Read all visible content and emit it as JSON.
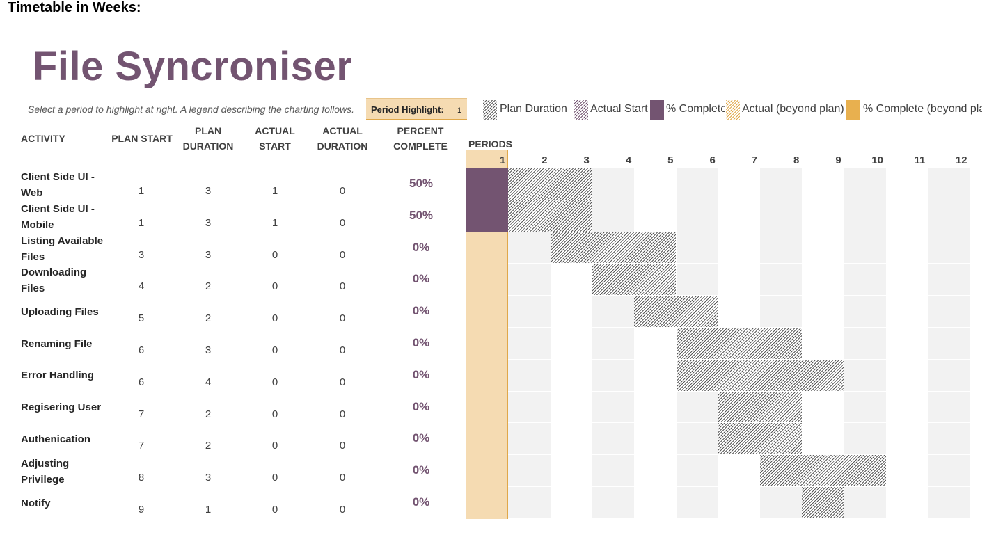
{
  "top_heading": "Timetable in Weeks:",
  "project_title": "File Syncroniser",
  "subtitle": "Select a period to highlight at right.  A legend describing the charting follows.",
  "period_highlight": {
    "label": "Period Highlight:",
    "value": "1"
  },
  "legend": [
    {
      "label": "Plan Duration",
      "swatch": "plan-hatch"
    },
    {
      "label": "Actual Start",
      "swatch": "actual-hatch"
    },
    {
      "label": "% Complete",
      "swatch": "complete-solid"
    },
    {
      "label": "Actual (beyond plan)",
      "swatch": "beyond-hatch"
    },
    {
      "label": "% Complete (beyond plan)",
      "swatch": "beyond-solid"
    }
  ],
  "columns": {
    "activity": "ACTIVITY",
    "plan_start": "PLAN START",
    "plan_duration": "PLAN\nDURATION",
    "actual_start": "ACTUAL\nSTART",
    "actual_duration": "ACTUAL\nDURATION",
    "percent_complete": "PERCENT\nCOMPLETE",
    "periods": "PERIODS"
  },
  "periods": [
    "1",
    "2",
    "3",
    "4",
    "5",
    "6",
    "7",
    "8",
    "9",
    "10",
    "11",
    "12"
  ],
  "activities": [
    {
      "name": "Client Side UI - Web",
      "plan_start": 1,
      "plan_duration": 3,
      "actual_start": 1,
      "actual_duration": 0,
      "percent": "50%",
      "complete": 0.5
    },
    {
      "name": "Client Side UI - Mobile",
      "plan_start": 1,
      "plan_duration": 3,
      "actual_start": 1,
      "actual_duration": 0,
      "percent": "50%",
      "complete": 0.5
    },
    {
      "name": "Listing Available Files",
      "plan_start": 3,
      "plan_duration": 3,
      "actual_start": 0,
      "actual_duration": 0,
      "percent": "0%",
      "complete": 0
    },
    {
      "name": "Downloading Files",
      "plan_start": 4,
      "plan_duration": 2,
      "actual_start": 0,
      "actual_duration": 0,
      "percent": "0%",
      "complete": 0
    },
    {
      "name": "Uploading Files",
      "plan_start": 5,
      "plan_duration": 2,
      "actual_start": 0,
      "actual_duration": 0,
      "percent": "0%",
      "complete": 0
    },
    {
      "name": "Renaming File",
      "plan_start": 6,
      "plan_duration": 3,
      "actual_start": 0,
      "actual_duration": 0,
      "percent": "0%",
      "complete": 0
    },
    {
      "name": "Error Handling",
      "plan_start": 6,
      "plan_duration": 4,
      "actual_start": 0,
      "actual_duration": 0,
      "percent": "0%",
      "complete": 0
    },
    {
      "name": "Regisering User",
      "plan_start": 7,
      "plan_duration": 2,
      "actual_start": 0,
      "actual_duration": 0,
      "percent": "0%",
      "complete": 0
    },
    {
      "name": "Authenication",
      "plan_start": 7,
      "plan_duration": 2,
      "actual_start": 0,
      "actual_duration": 0,
      "percent": "0%",
      "complete": 0
    },
    {
      "name": "Adjusting Privilege",
      "plan_start": 8,
      "plan_duration": 3,
      "actual_start": 0,
      "actual_duration": 0,
      "percent": "0%",
      "complete": 0
    },
    {
      "name": "Notify",
      "plan_start": 9,
      "plan_duration": 1,
      "actual_start": 0,
      "actual_duration": 0,
      "percent": "0%",
      "complete": 0
    }
  ],
  "colors": {
    "accent": "#735471",
    "highlight": "#f5dbb2",
    "beyond": "#e8b04f",
    "shade": "#f2f2f2"
  }
}
